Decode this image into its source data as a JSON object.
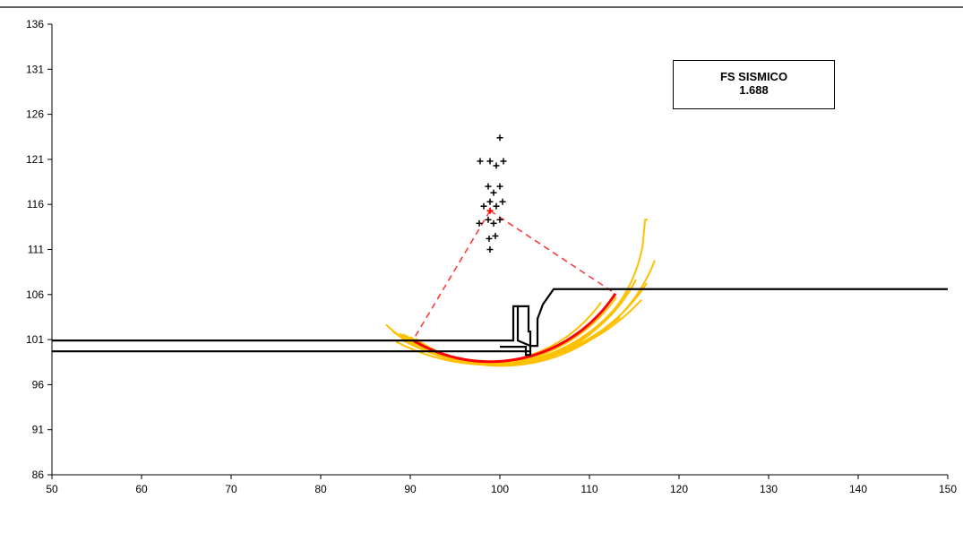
{
  "chart_data": {
    "type": "scatter",
    "title": "",
    "xlabel": "",
    "ylabel": "",
    "xlim": [
      50,
      150
    ],
    "ylim": [
      86,
      136
    ],
    "x_ticks": [
      50,
      60,
      70,
      80,
      90,
      100,
      110,
      120,
      130,
      140,
      150
    ],
    "y_ticks": [
      86,
      91,
      96,
      101,
      106,
      111,
      116,
      121,
      126,
      131,
      136
    ],
    "grid": false,
    "annotation": {
      "title": "FS  SISMICO",
      "value": "1.688"
    },
    "colors": {
      "critical_surface": "#ff0000",
      "trial_surfaces": "#ffc000",
      "radius_lines": "#ff3b3b",
      "terrain": "#000000",
      "centers": "#000000"
    },
    "terrain_lines": [
      {
        "name": "ground",
        "points": [
          [
            50,
            100.9
          ],
          [
            101.5,
            100.9
          ],
          [
            101.5,
            104.7
          ],
          [
            103.2,
            104.7
          ],
          [
            103.2,
            101.9
          ],
          [
            103.4,
            101.9
          ],
          [
            103.4,
            100.3
          ],
          [
            104.2,
            100.3
          ],
          [
            104.2,
            103.3
          ],
          [
            104.8,
            104.9
          ],
          [
            106,
            106.6
          ],
          [
            150,
            106.6
          ]
        ]
      },
      {
        "name": "lower-layer",
        "points": [
          [
            50,
            99.7
          ],
          [
            103.4,
            99.7
          ]
        ]
      },
      {
        "name": "wall-stem",
        "points": [
          [
            102,
            104.7
          ],
          [
            102,
            100.9
          ],
          [
            103.4,
            100.3
          ],
          [
            103.4,
            99.3
          ],
          [
            102.9,
            99.3
          ],
          [
            102.9,
            100.2
          ],
          [
            100,
            100.2
          ]
        ]
      }
    ],
    "trial_centers": [
      [
        100,
        123.4
      ],
      [
        97.8,
        120.8
      ],
      [
        98.9,
        120.8
      ],
      [
        99.6,
        120.3
      ],
      [
        100.4,
        120.8
      ],
      [
        98.7,
        118
      ],
      [
        99.3,
        117.3
      ],
      [
        100,
        118
      ],
      [
        98.2,
        115.8
      ],
      [
        98.9,
        116.3
      ],
      [
        99.6,
        115.8
      ],
      [
        100.3,
        116.3
      ],
      [
        97.7,
        113.9
      ],
      [
        98.7,
        114.3
      ],
      [
        99.3,
        113.9
      ],
      [
        100,
        114.3
      ],
      [
        98.8,
        112.2
      ],
      [
        99.5,
        112.5
      ],
      [
        98.9,
        111
      ]
    ],
    "critical_center": [
      98.9,
      115.3
    ],
    "critical_surface": {
      "center": [
        98.9,
        115.3
      ],
      "radius": 16.75,
      "x_start": 90.3,
      "x_end": 112.9
    },
    "trial_surfaces": [
      {
        "center": [
          98.2,
          114.5
        ],
        "radius": 16.1,
        "x_start": 87.3,
        "x_end": 111.3
      },
      {
        "center": [
          98.7,
          115.8
        ],
        "radius": 17.5,
        "x_start": 88.0,
        "x_end": 113.0
      },
      {
        "center": [
          99.3,
          116.3
        ],
        "radius": 18.0,
        "x_start": 88.8,
        "x_end": 114.3
      },
      {
        "center": [
          99.6,
          115.8
        ],
        "radius": 17.6,
        "x_start": 89.2,
        "x_end": 115.2
      },
      {
        "center": [
          100.0,
          118.0
        ],
        "radius": 19.6,
        "x_start": 89.5,
        "x_end": 116.4
      },
      {
        "center": [
          100.3,
          116.3
        ],
        "radius": 18.2,
        "x_start": 90.0,
        "x_end": 117.3
      },
      {
        "center": [
          99.6,
          120.3
        ],
        "radius": 22.0,
        "x_start": 89.0,
        "x_end": 115.8
      },
      {
        "center": [
          98.9,
          120.8
        ],
        "radius": 22.6,
        "x_start": 88.4,
        "x_end": 113.4
      },
      {
        "center": [
          100.0,
          114.3
        ],
        "radius": 16.2,
        "x_start": 90.6,
        "x_end": 116.5
      }
    ]
  }
}
